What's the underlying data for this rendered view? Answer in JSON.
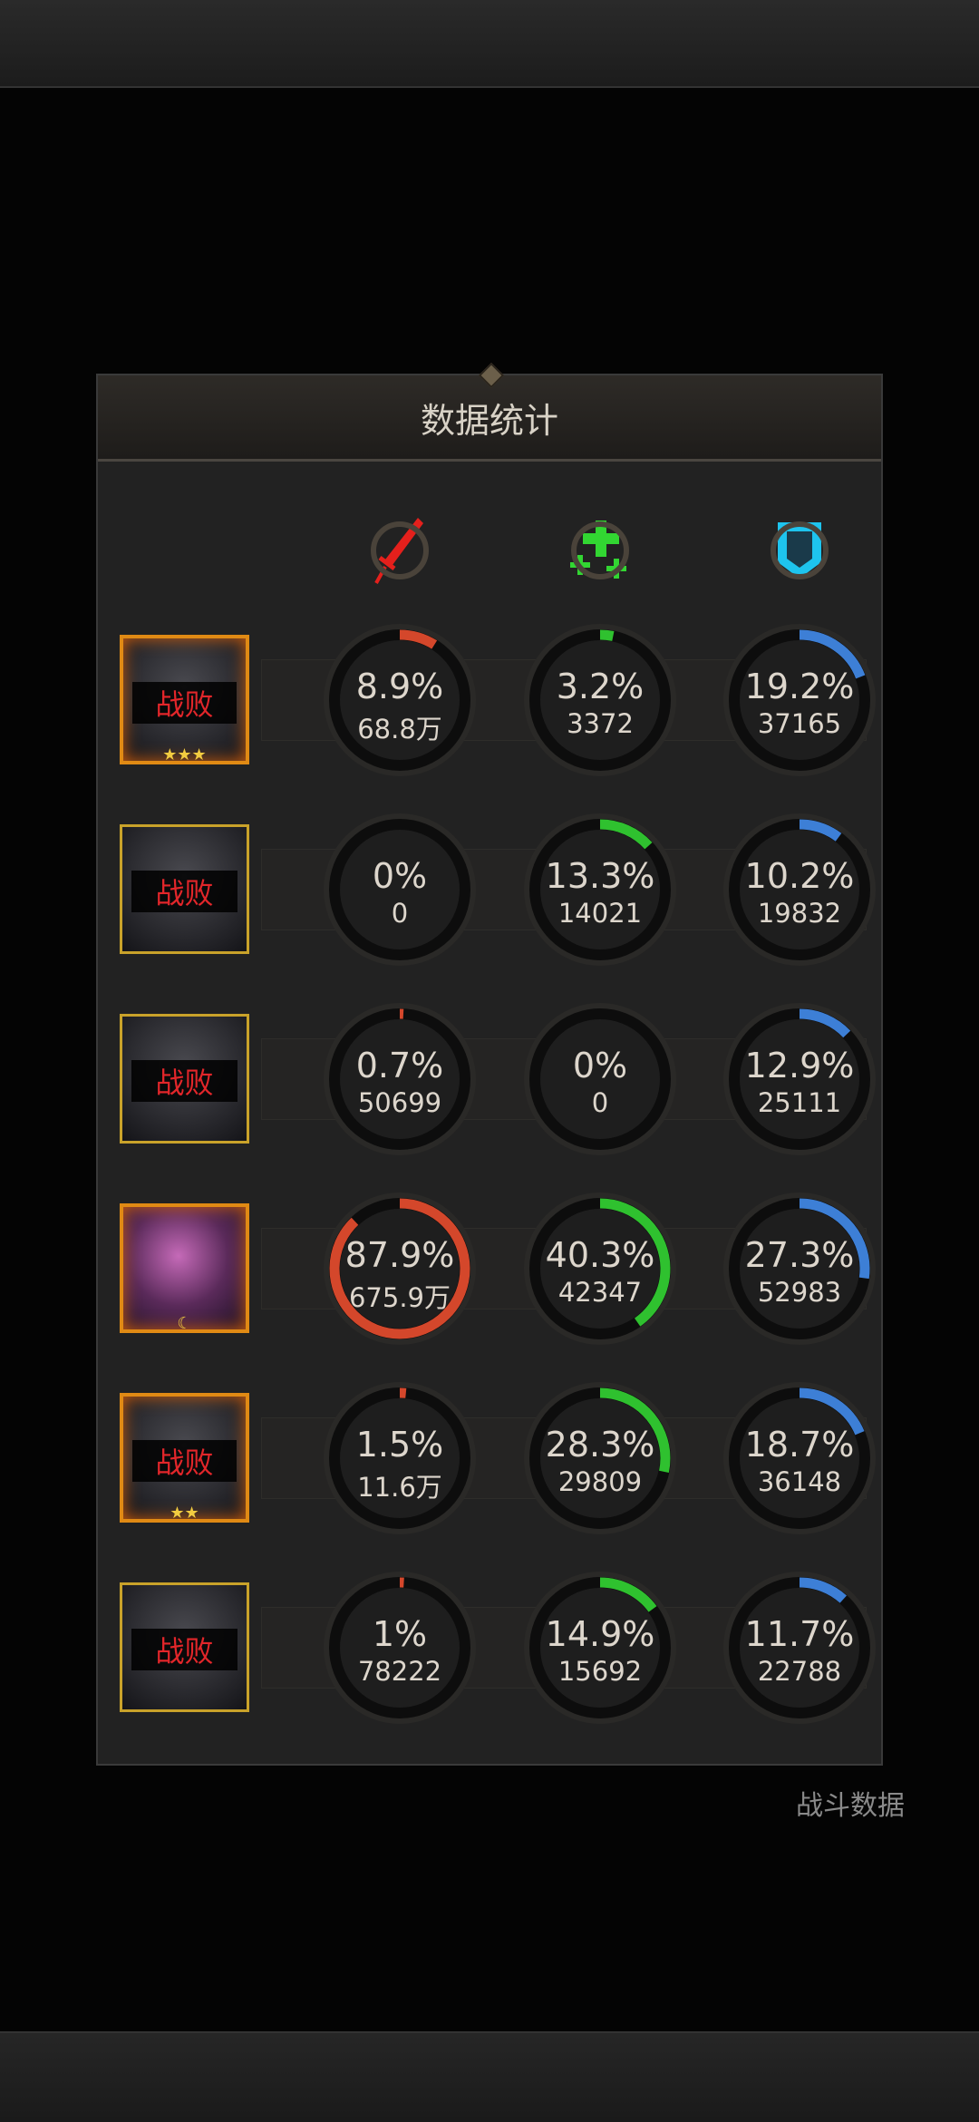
{
  "title": "数据统计",
  "background_label": "战斗数据",
  "columns": [
    {
      "icon": "sword-icon",
      "color": "#e4201c",
      "arc_color": "#d4472b"
    },
    {
      "icon": "heal-plus-icon",
      "color": "#32d632",
      "arc_color": "#2fc12f"
    },
    {
      "icon": "shield-icon",
      "color": "#1ec4ee",
      "arc_color": "#3d7fd6"
    }
  ],
  "rows": [
    {
      "defeat": "战败",
      "border": "fire",
      "stars": "★★★",
      "stats": [
        {
          "pct": 8.9,
          "label": "8.9%",
          "value": "68.8万"
        },
        {
          "pct": 3.2,
          "label": "3.2%",
          "value": "3372"
        },
        {
          "pct": 19.2,
          "label": "19.2%",
          "value": "37165"
        }
      ]
    },
    {
      "defeat": "战败",
      "border": "gold",
      "stars": "",
      "stats": [
        {
          "pct": 0,
          "label": "0%",
          "value": "0"
        },
        {
          "pct": 13.3,
          "label": "13.3%",
          "value": "14021"
        },
        {
          "pct": 10.2,
          "label": "10.2%",
          "value": "19832"
        }
      ]
    },
    {
      "defeat": "战败",
      "border": "gold",
      "stars": "",
      "stats": [
        {
          "pct": 0.7,
          "label": "0.7%",
          "value": "50699"
        },
        {
          "pct": 0,
          "label": "0%",
          "value": "0"
        },
        {
          "pct": 12.9,
          "label": "12.9%",
          "value": "25111"
        }
      ]
    },
    {
      "defeat": "",
      "border": "fire",
      "stars": "☾",
      "stats": [
        {
          "pct": 87.9,
          "label": "87.9%",
          "value": "675.9万"
        },
        {
          "pct": 40.3,
          "label": "40.3%",
          "value": "42347"
        },
        {
          "pct": 27.3,
          "label": "27.3%",
          "value": "52983"
        }
      ]
    },
    {
      "defeat": "战败",
      "border": "fire",
      "stars": "★★",
      "stats": [
        {
          "pct": 1.5,
          "label": "1.5%",
          "value": "11.6万"
        },
        {
          "pct": 28.3,
          "label": "28.3%",
          "value": "29809"
        },
        {
          "pct": 18.7,
          "label": "18.7%",
          "value": "36148"
        }
      ]
    },
    {
      "defeat": "战败",
      "border": "gold",
      "stars": "",
      "stats": [
        {
          "pct": 1,
          "label": "1%",
          "value": "78222"
        },
        {
          "pct": 14.9,
          "label": "14.9%",
          "value": "15692"
        },
        {
          "pct": 11.7,
          "label": "11.7%",
          "value": "22788"
        }
      ]
    }
  ]
}
